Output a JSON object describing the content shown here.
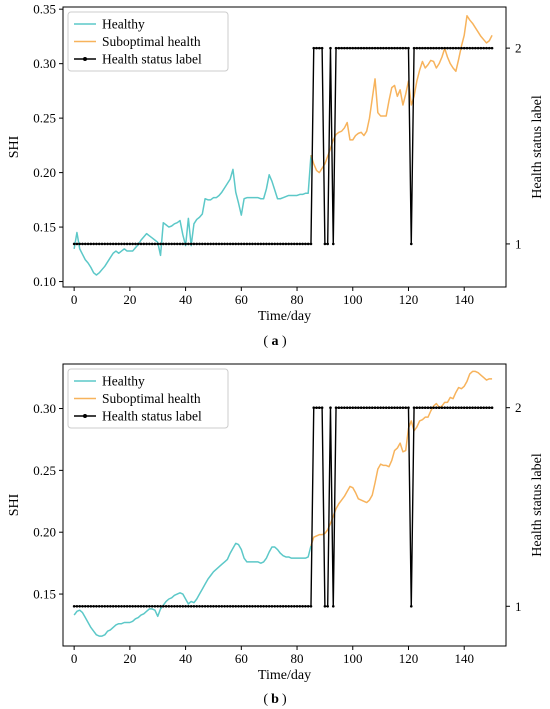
{
  "colors": {
    "healthy": "#5cc8c8",
    "suboptimal": "#f7b35c",
    "label": "#000000"
  },
  "chart_data": [
    {
      "id": "a",
      "panel_label": "a",
      "type": "line",
      "xlabel": "Time/day",
      "ylabel": "SHI",
      "y2label": "Health status label",
      "xlim": [
        -4,
        155
      ],
      "ylim": [
        0.095,
        0.352
      ],
      "y2lim": [
        0.78,
        2.21
      ],
      "xticks": [
        0,
        20,
        40,
        60,
        80,
        100,
        120,
        140
      ],
      "yticks": [
        0.1,
        0.15,
        0.2,
        0.25,
        0.3,
        0.35
      ],
      "ytick_labels": [
        "0.10",
        "0.15",
        "0.20",
        "0.25",
        "0.30",
        "0.35"
      ],
      "y2ticks": [
        1,
        2
      ],
      "y2tick_labels": [
        "1",
        "2"
      ],
      "legend": [
        "Healthy",
        "Suboptimal health",
        "Health status label"
      ],
      "legend_position": "upper-left",
      "series": [
        {
          "name": "Healthy",
          "x": [
            0,
            1,
            2,
            3,
            4,
            5,
            6,
            7,
            8,
            9,
            10,
            11,
            12,
            13,
            14,
            15,
            16,
            17,
            18,
            19,
            20,
            21,
            22,
            23,
            24,
            25,
            26,
            27,
            28,
            29,
            30,
            31,
            32,
            33,
            34,
            35,
            36,
            37,
            38,
            39,
            40,
            41,
            42,
            43,
            44,
            45,
            46,
            47,
            48,
            49,
            50,
            51,
            52,
            53,
            54,
            55,
            56,
            57,
            58,
            59,
            60,
            61,
            62,
            63,
            64,
            65,
            66,
            67,
            68,
            69,
            70,
            71,
            72,
            73,
            74,
            75,
            76,
            77,
            78,
            79,
            80,
            81,
            82,
            83,
            84,
            85
          ],
          "y": [
            0.13,
            0.145,
            0.13,
            0.125,
            0.12,
            0.117,
            0.113,
            0.108,
            0.106,
            0.108,
            0.111,
            0.114,
            0.118,
            0.122,
            0.126,
            0.128,
            0.126,
            0.128,
            0.13,
            0.128,
            0.128,
            0.128,
            0.131,
            0.134,
            0.138,
            0.141,
            0.144,
            0.142,
            0.14,
            0.138,
            0.136,
            0.124,
            0.154,
            0.152,
            0.15,
            0.151,
            0.153,
            0.154,
            0.156,
            0.143,
            0.133,
            0.158,
            0.133,
            0.153,
            0.157,
            0.159,
            0.162,
            0.176,
            0.175,
            0.175,
            0.177,
            0.177,
            0.179,
            0.182,
            0.186,
            0.19,
            0.194,
            0.203,
            0.182,
            0.172,
            0.161,
            0.176,
            0.177,
            0.177,
            0.177,
            0.177,
            0.177,
            0.176,
            0.176,
            0.185,
            0.198,
            0.192,
            0.184,
            0.176,
            0.176,
            0.177,
            0.178,
            0.179,
            0.179,
            0.179,
            0.179,
            0.18,
            0.18,
            0.181,
            0.181,
            0.216
          ]
        },
        {
          "name": "Suboptimal health",
          "x": [
            85,
            86,
            87,
            88,
            89,
            90,
            91,
            92,
            93,
            94,
            95,
            96,
            97,
            98,
            99,
            100,
            101,
            102,
            103,
            104,
            105,
            106,
            107,
            108,
            109,
            110,
            111,
            112,
            113,
            114,
            115,
            116,
            117,
            118,
            119,
            120,
            121,
            122,
            123,
            124,
            125,
            126,
            127,
            128,
            129,
            130,
            131,
            132,
            133,
            134,
            135,
            136,
            137,
            138,
            139,
            140,
            141,
            142,
            143,
            144,
            145,
            146,
            147,
            148,
            149,
            150
          ],
          "y": [
            0.216,
            0.208,
            0.202,
            0.2,
            0.204,
            0.208,
            0.215,
            0.222,
            0.23,
            0.235,
            0.237,
            0.238,
            0.241,
            0.246,
            0.23,
            0.23,
            0.234,
            0.236,
            0.237,
            0.234,
            0.238,
            0.25,
            0.268,
            0.286,
            0.255,
            0.252,
            0.252,
            0.252,
            0.266,
            0.278,
            0.28,
            0.27,
            0.276,
            0.262,
            0.272,
            0.284,
            0.262,
            0.27,
            0.284,
            0.294,
            0.302,
            0.296,
            0.299,
            0.303,
            0.302,
            0.296,
            0.3,
            0.306,
            0.314,
            0.306,
            0.3,
            0.296,
            0.293,
            0.304,
            0.316,
            0.326,
            0.344,
            0.34,
            0.337,
            0.333,
            0.329,
            0.325,
            0.322,
            0.319,
            0.321,
            0.326
          ]
        },
        {
          "name": "Health status label",
          "x": [
            0,
            85,
            86,
            89,
            90,
            91,
            92,
            93,
            94,
            120,
            121,
            122,
            150
          ],
          "y": [
            1,
            1,
            2,
            2,
            1,
            1,
            2,
            1,
            2,
            2,
            1,
            2,
            2
          ]
        }
      ]
    },
    {
      "id": "b",
      "panel_label": "b",
      "type": "line",
      "xlabel": "Time/day",
      "ylabel": "SHI",
      "y2label": "Health status label",
      "xlim": [
        -4,
        155
      ],
      "ylim": [
        0.108,
        0.336
      ],
      "y2lim": [
        0.8,
        2.22
      ],
      "xticks": [
        0,
        20,
        40,
        60,
        80,
        100,
        120,
        140
      ],
      "yticks": [
        0.15,
        0.2,
        0.25,
        0.3
      ],
      "ytick_labels": [
        "0.15",
        "0.20",
        "0.25",
        "0.30"
      ],
      "y2ticks": [
        1,
        2
      ],
      "y2tick_labels": [
        "1",
        "2"
      ],
      "legend": [
        "Healthy",
        "Suboptimal health",
        "Health status label"
      ],
      "legend_position": "upper-left",
      "series": [
        {
          "name": "Healthy",
          "x": [
            0,
            1,
            2,
            3,
            4,
            5,
            6,
            7,
            8,
            9,
            10,
            11,
            12,
            13,
            14,
            15,
            16,
            17,
            18,
            19,
            20,
            21,
            22,
            23,
            24,
            25,
            26,
            27,
            28,
            29,
            30,
            31,
            32,
            33,
            34,
            35,
            36,
            37,
            38,
            39,
            40,
            41,
            42,
            43,
            44,
            45,
            46,
            47,
            48,
            49,
            50,
            51,
            52,
            53,
            54,
            55,
            56,
            57,
            58,
            59,
            60,
            61,
            62,
            63,
            64,
            65,
            66,
            67,
            68,
            69,
            70,
            71,
            72,
            73,
            74,
            75,
            76,
            77,
            78,
            79,
            80,
            81,
            82,
            83,
            84,
            85
          ],
          "y": [
            0.133,
            0.136,
            0.137,
            0.135,
            0.131,
            0.127,
            0.123,
            0.12,
            0.117,
            0.116,
            0.116,
            0.117,
            0.12,
            0.121,
            0.123,
            0.125,
            0.126,
            0.126,
            0.127,
            0.127,
            0.127,
            0.128,
            0.13,
            0.131,
            0.133,
            0.134,
            0.136,
            0.138,
            0.138,
            0.137,
            0.132,
            0.138,
            0.141,
            0.144,
            0.146,
            0.147,
            0.149,
            0.15,
            0.151,
            0.15,
            0.146,
            0.142,
            0.144,
            0.143,
            0.146,
            0.15,
            0.154,
            0.158,
            0.162,
            0.165,
            0.168,
            0.17,
            0.172,
            0.174,
            0.176,
            0.178,
            0.183,
            0.187,
            0.191,
            0.19,
            0.186,
            0.179,
            0.176,
            0.176,
            0.176,
            0.176,
            0.176,
            0.175,
            0.176,
            0.179,
            0.184,
            0.188,
            0.188,
            0.186,
            0.183,
            0.181,
            0.18,
            0.18,
            0.179,
            0.179,
            0.179,
            0.179,
            0.179,
            0.179,
            0.18,
            0.189
          ]
        },
        {
          "name": "Suboptimal health",
          "x": [
            85,
            86,
            87,
            88,
            89,
            90,
            91,
            92,
            93,
            94,
            95,
            96,
            97,
            98,
            99,
            100,
            101,
            102,
            103,
            104,
            105,
            106,
            107,
            108,
            109,
            110,
            111,
            112,
            113,
            114,
            115,
            116,
            117,
            118,
            119,
            120,
            121,
            122,
            123,
            124,
            125,
            126,
            127,
            128,
            129,
            130,
            131,
            132,
            133,
            134,
            135,
            136,
            137,
            138,
            139,
            140,
            141,
            142,
            143,
            144,
            145,
            146,
            147,
            148,
            149,
            150
          ],
          "y": [
            0.189,
            0.196,
            0.197,
            0.198,
            0.198,
            0.199,
            0.202,
            0.207,
            0.213,
            0.219,
            0.223,
            0.226,
            0.229,
            0.233,
            0.237,
            0.236,
            0.232,
            0.227,
            0.226,
            0.225,
            0.224,
            0.226,
            0.23,
            0.24,
            0.251,
            0.255,
            0.254,
            0.254,
            0.253,
            0.258,
            0.266,
            0.268,
            0.272,
            0.265,
            0.266,
            0.284,
            0.29,
            0.282,
            0.285,
            0.29,
            0.291,
            0.293,
            0.293,
            0.298,
            0.302,
            0.304,
            0.301,
            0.302,
            0.305,
            0.305,
            0.309,
            0.308,
            0.313,
            0.317,
            0.316,
            0.318,
            0.322,
            0.328,
            0.33,
            0.33,
            0.329,
            0.327,
            0.325,
            0.323,
            0.324,
            0.324
          ]
        },
        {
          "name": "Health status label",
          "x": [
            0,
            85,
            86,
            89,
            90,
            91,
            92,
            93,
            94,
            120,
            121,
            122,
            150
          ],
          "y": [
            1,
            1,
            2,
            2,
            1,
            1,
            2,
            1,
            2,
            2,
            1,
            2,
            2
          ]
        }
      ]
    }
  ]
}
